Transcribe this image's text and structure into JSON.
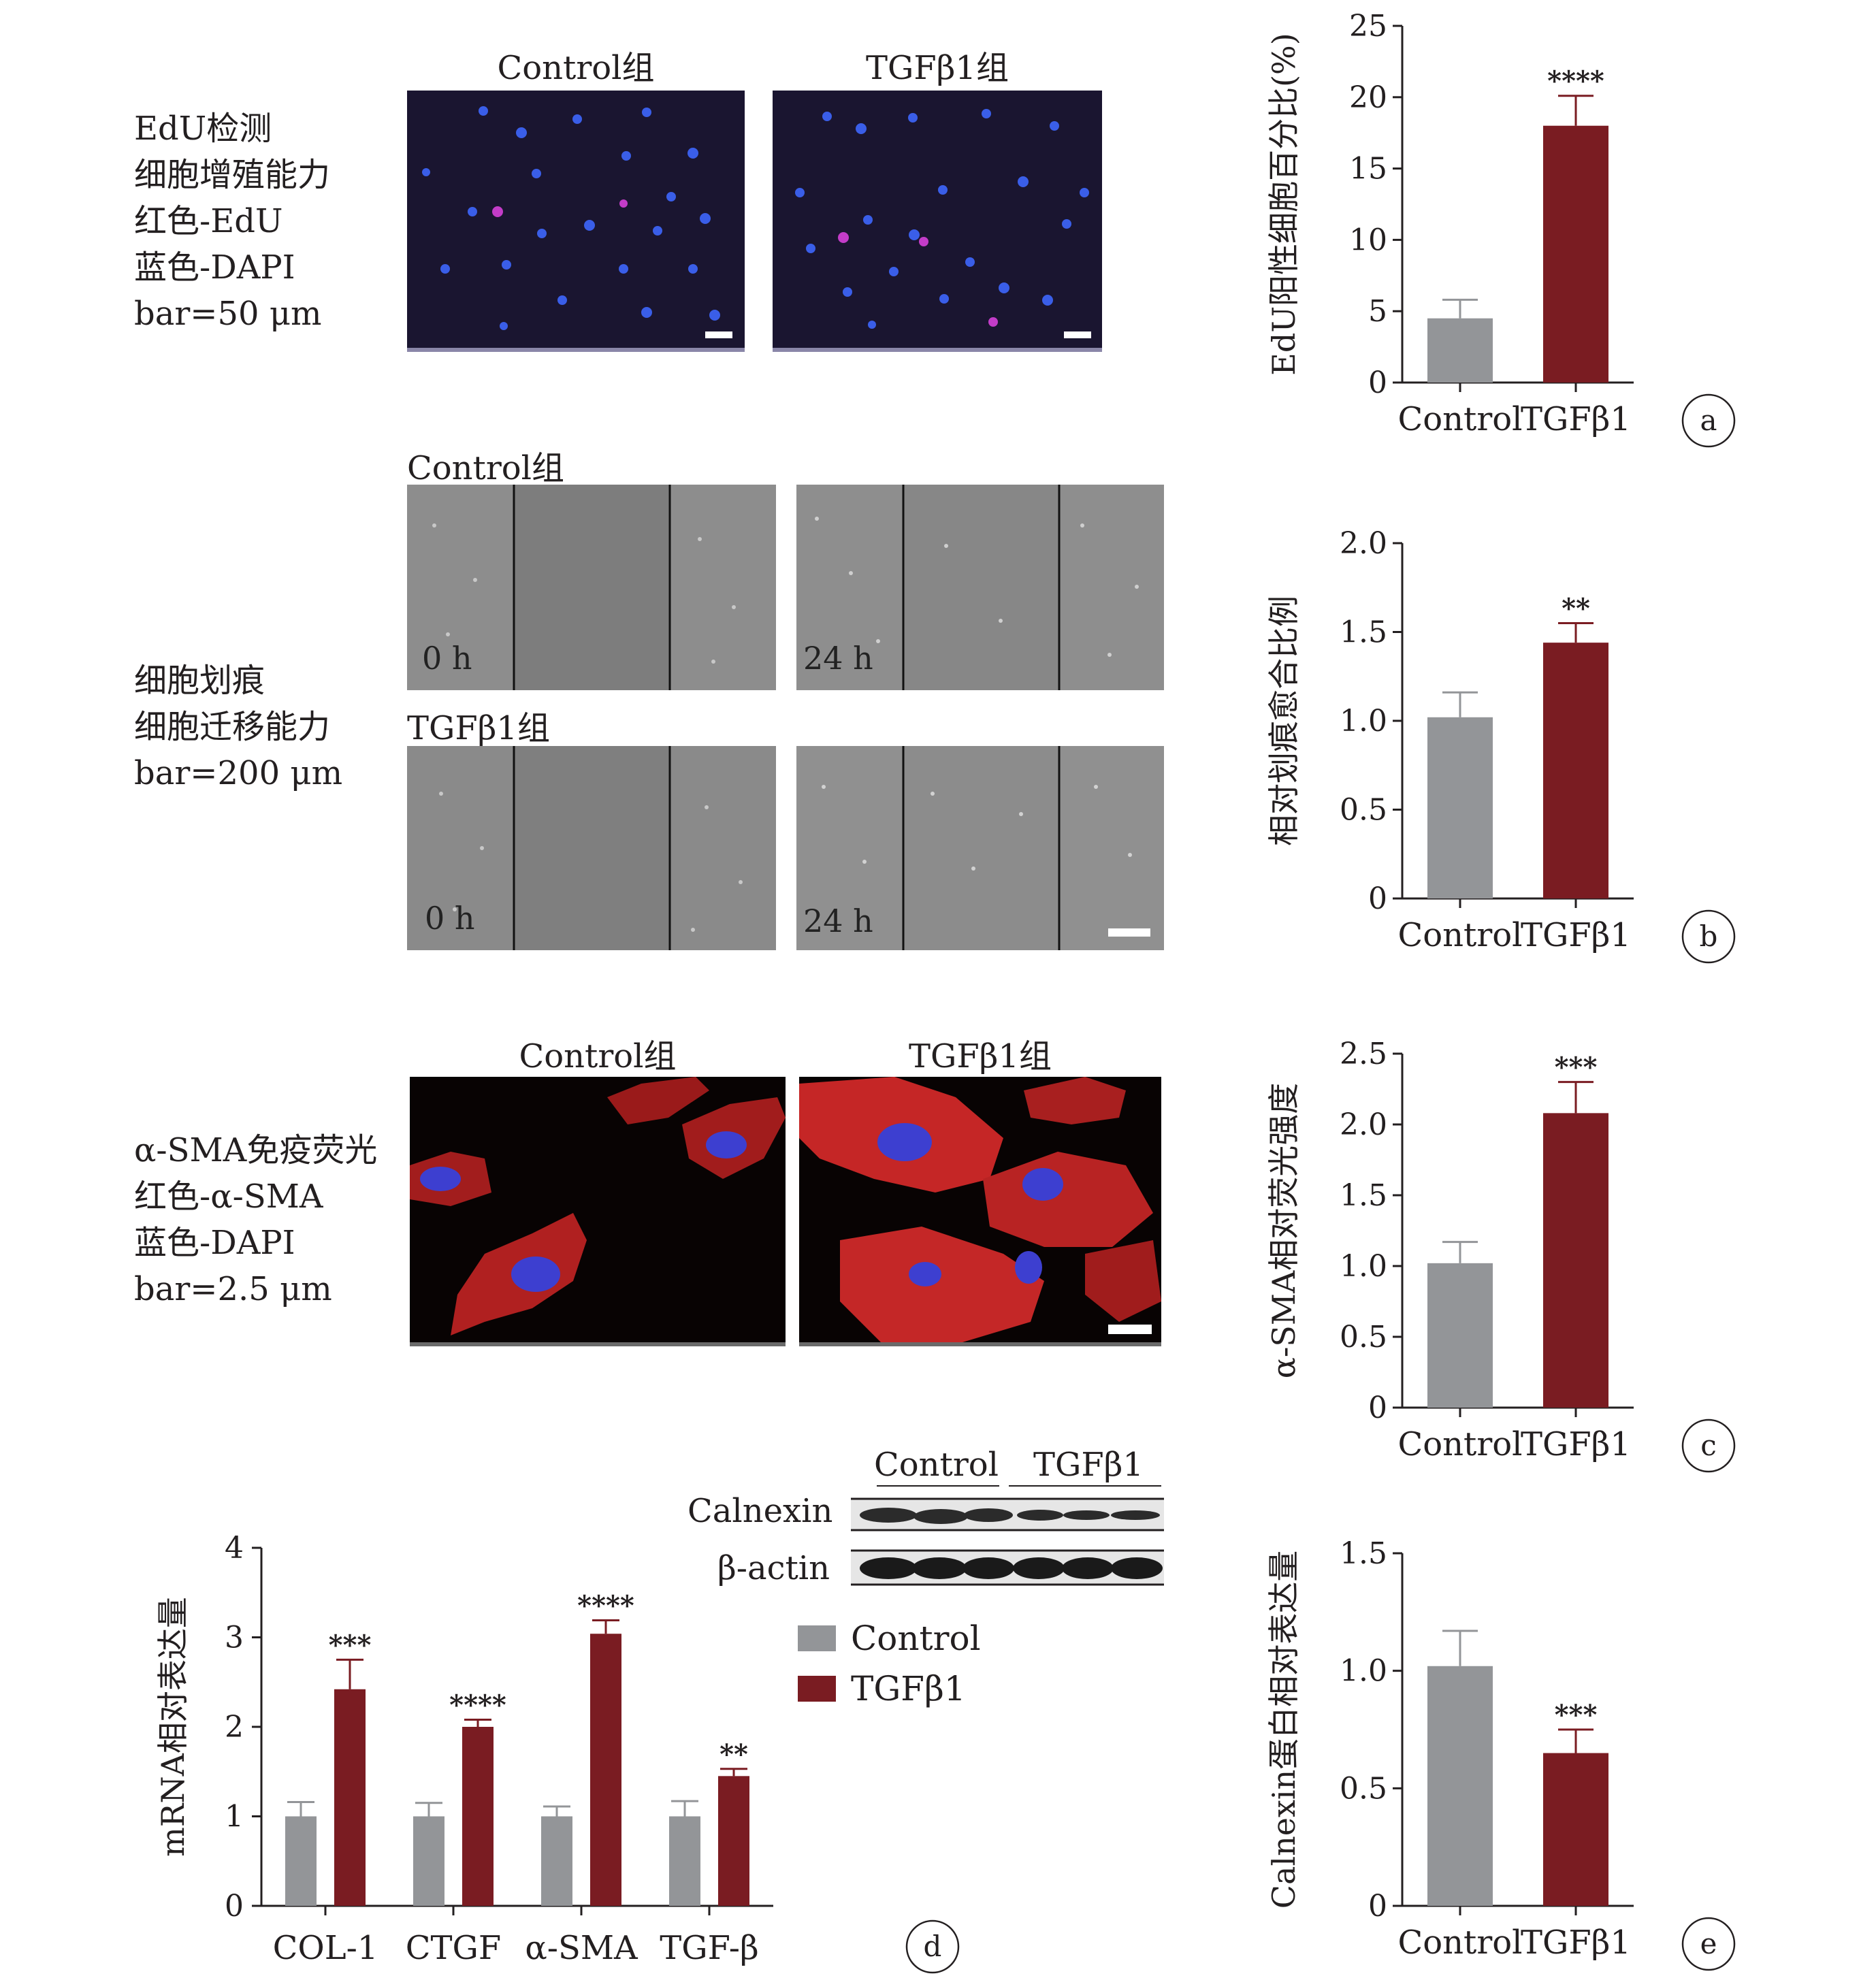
{
  "section_a": {
    "label": "EdU检测\n细胞增殖能力\n红色-EdU\n蓝色-DAPI\nbar=50 μm",
    "panel_titles": [
      "Control组",
      "TGFβ1组"
    ]
  },
  "section_b": {
    "label": "细胞划痕\n细胞迁移能力\nbar=200 μm",
    "group_titles": [
      "Control组",
      "TGFβ1组"
    ],
    "time_labels": [
      "0 h",
      "24 h",
      "0 h",
      "24 h"
    ]
  },
  "section_c": {
    "label": "α-SMA免疫荧光\n红色-α-SMA\n蓝色-DAPI\nbar=2.5 μm",
    "panel_titles": [
      "Control组",
      "TGFβ1组"
    ]
  },
  "western": {
    "group_labels": [
      "Control",
      "TGFβ1"
    ],
    "row_labels": [
      "Calnexin",
      "β-actin"
    ]
  },
  "legend": {
    "items": [
      {
        "label": "Control",
        "color": "#939598"
      },
      {
        "label": "TGFβ1",
        "color": "#7a1c22"
      }
    ]
  },
  "colors": {
    "control": "#939598",
    "tgf": "#7a1c22",
    "axis": "#231f20"
  },
  "chart_data": [
    {
      "id": "a",
      "type": "bar",
      "panel_letter": "a",
      "categories": [
        "Control",
        "TGFβ1"
      ],
      "values": [
        4.5,
        18.0
      ],
      "errors": [
        1.3,
        2.1
      ],
      "significance": [
        "",
        "****"
      ],
      "ylabel": "EdU阳性细胞百分比(%)",
      "ylim": [
        0,
        25
      ],
      "yticks": [
        0,
        5,
        10,
        15,
        20,
        25
      ],
      "ytick_labels": [
        "0",
        "5",
        "10",
        "15",
        "20",
        "25"
      ]
    },
    {
      "id": "b",
      "type": "bar",
      "panel_letter": "b",
      "categories": [
        "Control",
        "TGFβ1"
      ],
      "values": [
        1.02,
        1.44
      ],
      "errors": [
        0.14,
        0.11
      ],
      "significance": [
        "",
        "**"
      ],
      "ylabel": "相对划痕愈合比例",
      "ylim": [
        0,
        2
      ],
      "yticks": [
        0,
        0.5,
        1,
        1.5,
        2
      ],
      "ytick_labels": [
        "0",
        "0.5",
        "1.0",
        "1.5",
        "2.0"
      ]
    },
    {
      "id": "c",
      "type": "bar",
      "panel_letter": "c",
      "categories": [
        "Control",
        "TGFβ1"
      ],
      "values": [
        1.02,
        2.08
      ],
      "errors": [
        0.15,
        0.22
      ],
      "significance": [
        "",
        "***"
      ],
      "ylabel": "α-SMA相对荧光强度",
      "ylim": [
        0,
        2.5
      ],
      "yticks": [
        0,
        0.5,
        1,
        1.5,
        2,
        2.5
      ],
      "ytick_labels": [
        "0",
        "0.5",
        "1.0",
        "1.5",
        "2.0",
        "2.5"
      ]
    },
    {
      "id": "d",
      "type": "bar",
      "panel_letter": "d",
      "categories": [
        "COL-1",
        "CTGF",
        "α-SMA",
        "TGF-β"
      ],
      "series": [
        {
          "name": "Control",
          "values": [
            1.0,
            1.0,
            1.0,
            1.0
          ],
          "errors": [
            0.16,
            0.15,
            0.11,
            0.17
          ]
        },
        {
          "name": "TGFβ1",
          "values": [
            2.42,
            2.0,
            3.04,
            1.45
          ],
          "errors": [
            0.33,
            0.08,
            0.15,
            0.08
          ]
        }
      ],
      "significance": [
        "***",
        "****",
        "****",
        "**"
      ],
      "ylabel": "mRNA相对表达量",
      "ylim": [
        0,
        4
      ],
      "yticks": [
        0,
        1,
        2,
        3,
        4
      ],
      "ytick_labels": [
        "0",
        "1",
        "2",
        "3",
        "4"
      ]
    },
    {
      "id": "e",
      "type": "bar",
      "panel_letter": "e",
      "categories": [
        "Control",
        "TGFβ1"
      ],
      "values": [
        1.02,
        0.65
      ],
      "errors": [
        0.15,
        0.1
      ],
      "significance": [
        "",
        "***"
      ],
      "ylabel": "Calnexin蛋白相对表达量",
      "ylim": [
        0,
        1.5
      ],
      "yticks": [
        0,
        0.5,
        1,
        1.5
      ],
      "ytick_labels": [
        "0",
        "0.5",
        "1.0",
        "1.5"
      ]
    }
  ]
}
